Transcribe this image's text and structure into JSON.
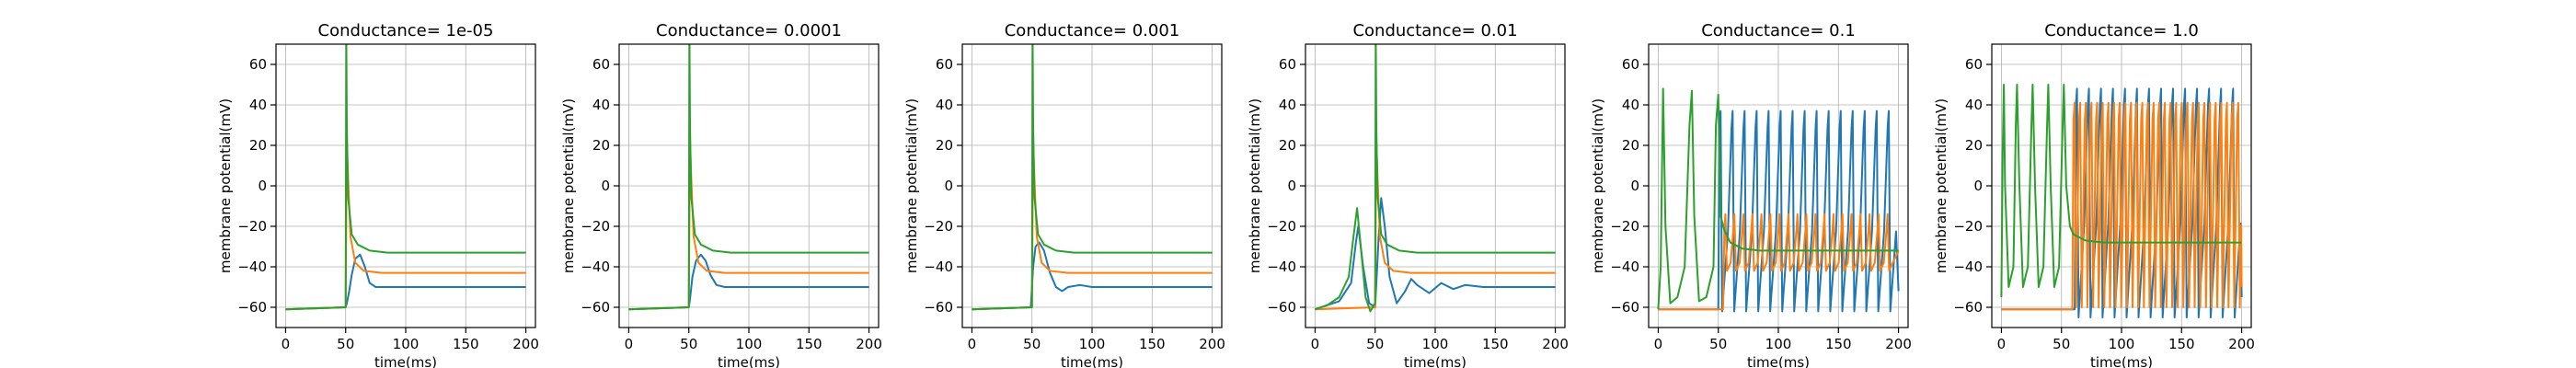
{
  "colors": {
    "series1": "#1f77b4",
    "series2": "#ff7f0e",
    "series3": "#2ca02c",
    "grid": "#b0b0b0"
  },
  "chart_data": [
    {
      "type": "line",
      "title": "Conductance= 1e-05",
      "xlabel": "time(ms)",
      "ylabel": "membrane potential(mV)",
      "xlim": [
        -8,
        208
      ],
      "ylim": [
        -70,
        70
      ],
      "xticks": [
        0,
        50,
        100,
        150,
        200
      ],
      "yticks": [
        -60,
        -40,
        -20,
        0,
        20,
        40,
        60
      ],
      "grid": true,
      "series": [
        {
          "color": "#1f77b4",
          "x": [
            0,
            50,
            51,
            53,
            55,
            58,
            62,
            66,
            70,
            75,
            82,
            90,
            100,
            200
          ],
          "y": [
            -61,
            -60,
            -58,
            -52,
            -44,
            -36,
            -34,
            -40,
            -48,
            -50,
            -50,
            -50,
            -50,
            -50
          ]
        },
        {
          "color": "#ff7f0e",
          "x": [
            0,
            50,
            51,
            52,
            54,
            58,
            65,
            80,
            200
          ],
          "y": [
            -61,
            -60,
            23,
            5,
            -25,
            -38,
            -42,
            -43,
            -43
          ]
        },
        {
          "color": "#2ca02c",
          "x": [
            0,
            50,
            50.5,
            51,
            52,
            55,
            60,
            70,
            85,
            100,
            200
          ],
          "y": [
            -61,
            -60,
            75,
            30,
            -5,
            -24,
            -29,
            -32,
            -33,
            -33,
            -33
          ]
        }
      ]
    },
    {
      "type": "line",
      "title": "Conductance= 0.0001",
      "xlabel": "time(ms)",
      "ylabel": "membrane potential(mV)",
      "xlim": [
        -8,
        208
      ],
      "ylim": [
        -70,
        70
      ],
      "xticks": [
        0,
        50,
        100,
        150,
        200
      ],
      "yticks": [
        -60,
        -40,
        -20,
        0,
        20,
        40,
        60
      ],
      "grid": true,
      "series": [
        {
          "color": "#1f77b4",
          "x": [
            0,
            50,
            51,
            53,
            56,
            60,
            64,
            68,
            73,
            80,
            90,
            100,
            200
          ],
          "y": [
            -61,
            -60,
            -56,
            -45,
            -37,
            -34,
            -37,
            -44,
            -49,
            -50,
            -50,
            -50,
            -50
          ]
        },
        {
          "color": "#ff7f0e",
          "x": [
            0,
            50,
            51,
            52,
            54,
            58,
            65,
            80,
            200
          ],
          "y": [
            -61,
            -60,
            23,
            5,
            -25,
            -38,
            -42,
            -43,
            -43
          ]
        },
        {
          "color": "#2ca02c",
          "x": [
            0,
            50,
            50.5,
            51,
            52,
            55,
            60,
            70,
            85,
            100,
            200
          ],
          "y": [
            -61,
            -60,
            75,
            30,
            -5,
            -24,
            -29,
            -32,
            -33,
            -33,
            -33
          ]
        }
      ]
    },
    {
      "type": "line",
      "title": "Conductance= 0.001",
      "xlabel": "time(ms)",
      "ylabel": "membrane potential(mV)",
      "xlim": [
        -8,
        208
      ],
      "ylim": [
        -70,
        70
      ],
      "xticks": [
        0,
        50,
        100,
        150,
        200
      ],
      "yticks": [
        -60,
        -40,
        -20,
        0,
        20,
        40,
        60
      ],
      "grid": true,
      "series": [
        {
          "color": "#1f77b4",
          "x": [
            0,
            49,
            51,
            53,
            56,
            60,
            65,
            70,
            75,
            80,
            90,
            100,
            200
          ],
          "y": [
            -61,
            -60,
            -40,
            -30,
            -28,
            -32,
            -43,
            -50,
            -52,
            -50,
            -49,
            -50,
            -50
          ]
        },
        {
          "color": "#ff7f0e",
          "x": [
            0,
            50,
            51,
            52,
            54,
            58,
            65,
            80,
            200
          ],
          "y": [
            -61,
            -60,
            23,
            5,
            -25,
            -38,
            -42,
            -43,
            -43
          ]
        },
        {
          "color": "#2ca02c",
          "x": [
            0,
            50,
            50.5,
            51,
            52,
            55,
            60,
            70,
            85,
            100,
            200
          ],
          "y": [
            -61,
            -60,
            75,
            30,
            -5,
            -24,
            -29,
            -32,
            -33,
            -33,
            -33
          ]
        }
      ]
    },
    {
      "type": "line",
      "title": "Conductance= 0.01",
      "xlabel": "time(ms)",
      "ylabel": "membrane potential(mV)",
      "xlim": [
        -8,
        208
      ],
      "ylim": [
        -70,
        70
      ],
      "xticks": [
        0,
        50,
        100,
        150,
        200
      ],
      "yticks": [
        -60,
        -40,
        -20,
        0,
        20,
        40,
        60
      ],
      "grid": true,
      "series": [
        {
          "color": "#1f77b4",
          "x": [
            0,
            20,
            30,
            34,
            36,
            40,
            45,
            50,
            53,
            55,
            58,
            62,
            68,
            75,
            80,
            85,
            95,
            105,
            115,
            125,
            140,
            160,
            200
          ],
          "y": [
            -61,
            -57,
            -48,
            -28,
            -20,
            -40,
            -58,
            -60,
            -25,
            -6,
            -20,
            -45,
            -58,
            -52,
            -46,
            -49,
            -53,
            -48,
            -51,
            -49,
            -50,
            -50,
            -50
          ]
        },
        {
          "color": "#ff7f0e",
          "x": [
            0,
            50,
            51,
            52,
            54,
            58,
            65,
            80,
            200
          ],
          "y": [
            -61,
            -60,
            23,
            5,
            -25,
            -38,
            -42,
            -43,
            -43
          ]
        },
        {
          "color": "#2ca02c",
          "x": [
            0,
            10,
            20,
            28,
            32,
            35,
            38,
            42,
            46,
            50,
            50.5,
            51,
            52,
            55,
            60,
            70,
            85,
            100,
            200
          ],
          "y": [
            -61,
            -59,
            -55,
            -45,
            -25,
            -11,
            -30,
            -55,
            -62,
            -58,
            75,
            30,
            -5,
            -24,
            -29,
            -32,
            -33,
            -33,
            -33
          ]
        }
      ]
    },
    {
      "type": "line",
      "title": "Conductance= 0.1",
      "xlabel": "time(ms)",
      "ylabel": "membrane potential(mV)",
      "xlim": [
        -8,
        208
      ],
      "ylim": [
        -70,
        70
      ],
      "xticks": [
        0,
        50,
        100,
        150,
        200
      ],
      "yticks": [
        -60,
        -40,
        -20,
        0,
        20,
        40,
        60
      ],
      "grid": true,
      "series": [
        {
          "color": "#1f77b4",
          "spikes": {
            "start": 51,
            "period": 10,
            "n": 15,
            "peak": 37,
            "trough": -62,
            "rest_before": -61
          }
        },
        {
          "color": "#ff7f0e",
          "spikes": {
            "start": 55,
            "period": 7.5,
            "n": 19,
            "peak": -14,
            "trough": -42,
            "rest_before": -61
          }
        },
        {
          "color": "#2ca02c",
          "x": [
            0,
            2,
            4,
            6,
            10,
            16,
            22,
            26,
            28,
            30,
            34,
            40,
            46,
            48,
            50,
            52,
            55,
            60,
            70,
            85,
            100,
            200
          ],
          "y": [
            -61,
            -40,
            48,
            -20,
            -58,
            -55,
            -40,
            30,
            47,
            -15,
            -57,
            -55,
            -40,
            30,
            45,
            -15,
            -22,
            -28,
            -31,
            -32,
            -32,
            -32
          ]
        }
      ]
    },
    {
      "type": "line",
      "title": "Conductance= 1.0",
      "xlabel": "time(ms)",
      "ylabel": "membrane potential(mV)",
      "xlim": [
        -8,
        208
      ],
      "ylim": [
        -70,
        70
      ],
      "xticks": [
        0,
        50,
        100,
        150,
        200
      ],
      "yticks": [
        -60,
        -40,
        -20,
        0,
        20,
        40,
        60
      ],
      "grid": true,
      "series": [
        {
          "color": "#1f77b4",
          "spikes": {
            "start": 62,
            "period": 10,
            "n": 14,
            "peak": 48,
            "trough": -65,
            "rest_before": -61
          }
        },
        {
          "color": "#ff7f0e",
          "spikes": {
            "start": 60,
            "period": 4.7,
            "n": 30,
            "peak": 41,
            "trough": -60,
            "rest_before": -61
          }
        },
        {
          "color": "#2ca02c",
          "x": [
            0,
            1,
            2,
            3,
            6,
            10,
            12,
            13,
            15,
            18,
            22,
            25,
            26,
            28,
            31,
            35,
            38,
            39,
            41,
            44,
            48,
            51,
            52,
            54,
            57,
            60,
            70,
            85,
            100,
            200
          ],
          "y": [
            -55,
            15,
            50,
            0,
            -50,
            -40,
            30,
            50,
            0,
            -50,
            -40,
            30,
            50,
            0,
            -50,
            -40,
            30,
            50,
            0,
            -50,
            -40,
            30,
            50,
            0,
            -20,
            -24,
            -27,
            -28,
            -28,
            -28
          ]
        }
      ]
    }
  ]
}
